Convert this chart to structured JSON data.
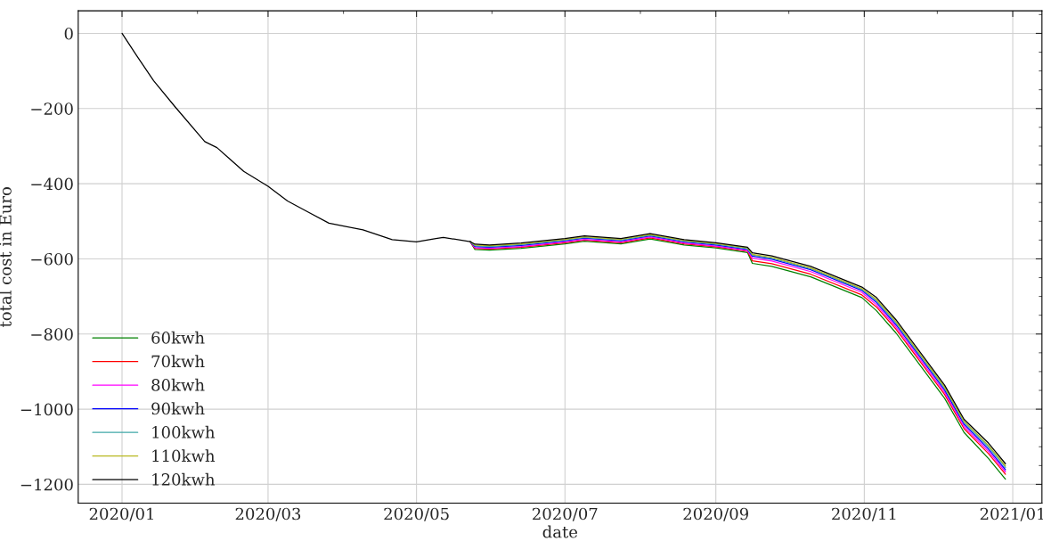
{
  "chart_data": {
    "type": "line",
    "xlabel": "date",
    "ylabel": "total cost in Euro",
    "x": [
      "2020-01-01",
      "2020-01-07",
      "2020-01-14",
      "2020-01-23",
      "2020-02-04",
      "2020-02-09",
      "2020-02-20",
      "2020-03-01",
      "2020-03-09",
      "2020-03-17",
      "2020-03-26",
      "2020-04-09",
      "2020-04-21",
      "2020-05-01",
      "2020-05-09",
      "2020-05-12",
      "2020-05-23",
      "2020-05-25",
      "2020-05-31",
      "2020-06-13",
      "2020-07-01",
      "2020-07-09",
      "2020-07-24",
      "2020-08-05",
      "2020-08-19",
      "2020-09-01",
      "2020-09-14",
      "2020-09-16",
      "2020-09-24",
      "2020-10-10",
      "2020-10-31",
      "2020-11-06",
      "2020-11-14",
      "2020-11-24",
      "2020-12-04",
      "2020-12-12",
      "2020-12-22",
      "2020-12-29"
    ],
    "series": [
      {
        "name": "60kwh",
        "color": "#008000",
        "values": [
          null,
          null,
          null,
          null,
          null,
          null,
          null,
          null,
          null,
          null,
          null,
          null,
          null,
          null,
          null,
          null,
          -554,
          -575,
          -577,
          -572,
          -560,
          -553,
          -560,
          -547,
          -563,
          -571,
          -583,
          -612,
          -620,
          -648,
          -703,
          -738,
          -797,
          -884,
          -971,
          -1062,
          -1131,
          -1186
        ]
      },
      {
        "name": "70kwh",
        "color": "#ff0000",
        "values": [
          null,
          null,
          null,
          null,
          null,
          null,
          null,
          null,
          null,
          null,
          null,
          null,
          null,
          null,
          null,
          null,
          -554,
          -572,
          -574,
          -569,
          -557,
          -550,
          -557,
          -544,
          -560,
          -568,
          -580,
          -605,
          -613,
          -641,
          -696,
          -728,
          -787,
          -874,
          -961,
          -1052,
          -1118,
          -1173
        ]
      },
      {
        "name": "80kwh",
        "color": "#ff00ff",
        "values": [
          null,
          null,
          null,
          null,
          null,
          null,
          null,
          null,
          null,
          null,
          null,
          null,
          null,
          null,
          null,
          null,
          -554,
          -570,
          -572,
          -567,
          -555,
          -548,
          -555,
          -542,
          -558,
          -566,
          -578,
          -598,
          -606,
          -634,
          -689,
          -722,
          -781,
          -868,
          -955,
          -1046,
          -1112,
          -1167
        ]
      },
      {
        "name": "90kwh",
        "color": "#0000ff",
        "values": [
          null,
          null,
          null,
          null,
          null,
          null,
          null,
          null,
          null,
          null,
          null,
          null,
          null,
          null,
          null,
          null,
          -554,
          -567,
          -569,
          -564,
          -552,
          -545,
          -552,
          -539,
          -555,
          -563,
          -575,
          -593,
          -601,
          -629,
          -684,
          -716,
          -775,
          -862,
          -949,
          -1040,
          -1106,
          -1161
        ]
      },
      {
        "name": "100kwh",
        "color": "#40a8a8",
        "values": [
          null,
          null,
          null,
          null,
          null,
          null,
          null,
          null,
          null,
          null,
          null,
          null,
          null,
          null,
          null,
          null,
          -554,
          -565,
          -567,
          -562,
          -550,
          -543,
          -550,
          -537,
          -553,
          -561,
          -573,
          -590,
          -598,
          -626,
          -681,
          -711,
          -770,
          -857,
          -944,
          -1035,
          -1100,
          -1155
        ]
      },
      {
        "name": "110kwh",
        "color": "#b8b820",
        "values": [
          null,
          null,
          null,
          null,
          null,
          null,
          null,
          null,
          null,
          null,
          null,
          null,
          null,
          null,
          null,
          null,
          -554,
          -563,
          -565,
          -560,
          -548,
          -541,
          -548,
          -535,
          -551,
          -559,
          -571,
          -588,
          -596,
          -624,
          -679,
          -708,
          -767,
          -854,
          -941,
          -1032,
          -1096,
          -1151
        ]
      },
      {
        "name": "120kwh",
        "color": "#000000",
        "values": [
          0,
          -59,
          -126,
          -197,
          -288,
          -304,
          -367,
          -407,
          -446,
          -474,
          -505,
          -523,
          -549,
          -555,
          -546,
          -543,
          -554,
          -561,
          -563,
          -558,
          -546,
          -539,
          -546,
          -533,
          -549,
          -557,
          -569,
          -584,
          -592,
          -620,
          -675,
          -703,
          -762,
          -849,
          -936,
          -1027,
          -1090,
          -1145
        ]
      }
    ],
    "xlim": [
      "2019-12-14",
      "2021-01-13"
    ],
    "xticks": [
      {
        "value": "2020-01-01",
        "label": "2020/01"
      },
      {
        "value": "2020-03-01",
        "label": "2020/03"
      },
      {
        "value": "2020-05-01",
        "label": "2020/05"
      },
      {
        "value": "2020-07-01",
        "label": "2020/07"
      },
      {
        "value": "2020-09-01",
        "label": "2020/09"
      },
      {
        "value": "2020-11-01",
        "label": "2020/11"
      },
      {
        "value": "2021-01-01",
        "label": "2021/01"
      }
    ],
    "ylim": [
      -1250,
      60
    ],
    "yticks": [
      0,
      {
        "value": -200,
        "label": "−200"
      },
      {
        "value": -400,
        "label": "−400"
      },
      {
        "value": -600,
        "label": "−600"
      },
      {
        "value": -800,
        "label": "−800"
      },
      {
        "value": -1000,
        "label": "−1000"
      },
      {
        "value": -1200,
        "label": "−1200"
      }
    ],
    "grid": true,
    "legend": "bottom left",
    "marker": "none",
    "line_style": "solid"
  }
}
